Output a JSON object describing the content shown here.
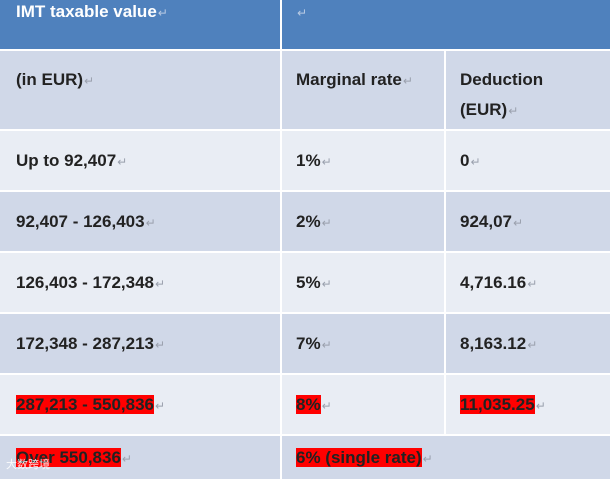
{
  "table": {
    "header": {
      "col1": "IMT taxable value",
      "col2": ""
    },
    "subheader": {
      "col1": "(in EUR)",
      "col2": "Marginal rate",
      "col3_line1": "Deduction",
      "col3_line2": "(EUR)"
    },
    "rows": [
      {
        "range": "Up to 92,407",
        "rate": "1%",
        "deduction": "0",
        "highlighted": false
      },
      {
        "range": "92,407 - 126,403",
        "rate": "2%",
        "deduction": "924,07",
        "highlighted": false
      },
      {
        "range": "126,403 - 172,348",
        "rate": "5%",
        "deduction": "4,716.16",
        "highlighted": false
      },
      {
        "range": "172,348 - 287,213",
        "rate": "7%",
        "deduction": "8,163.12",
        "highlighted": false
      },
      {
        "range": "287,213 - 550,836",
        "rate": "8%",
        "deduction": "11,035.25",
        "highlighted": true
      }
    ],
    "last_row": {
      "range": "Over 550,836",
      "rate": "6% (single rate)",
      "highlighted": true
    }
  },
  "paragraph_mark": "↵",
  "watermark": "大数跨境",
  "colors": {
    "header_bg": "#4f81bd",
    "band_dark": "#d0d8e8",
    "band_light": "#e9edf4",
    "highlight": "#ff0000"
  }
}
